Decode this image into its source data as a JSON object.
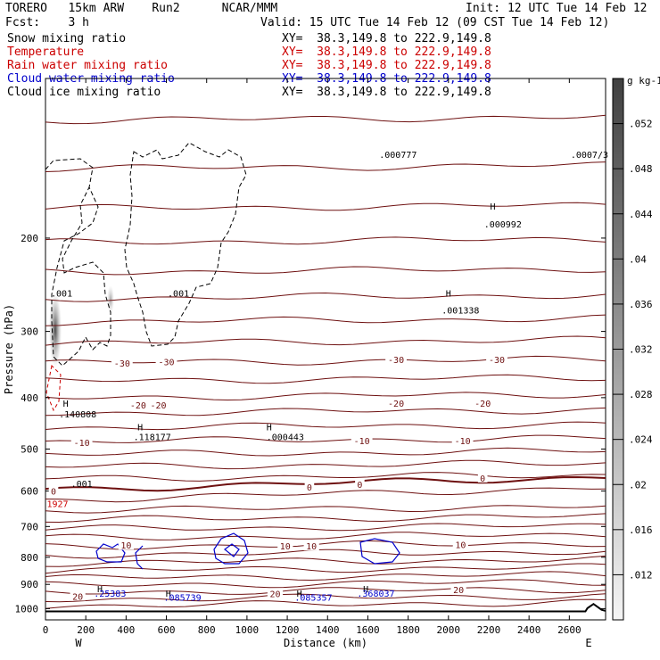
{
  "header": {
    "model": "TORERO   15km ARW    Run2      NCAR/MMM",
    "init": "Init: 12 UTC Tue 14 Feb 12",
    "fcst": "Fcst:    3 h",
    "valid": "Valid: 15 UTC Tue 14 Feb 12 (09 CST Tue 14 Feb 12)",
    "fields": [
      {
        "name": "Snow mixing ratio",
        "xy": "XY=  38.3,149.8 to 222.9,149.8",
        "color": "#000000"
      },
      {
        "name": "Temperature",
        "xy": "XY=  38.3,149.8 to 222.9,149.8",
        "color": "#cc0000"
      },
      {
        "name": "Rain water mixing ratio",
        "xy": "XY=  38.3,149.8 to 222.9,149.8",
        "color": "#cc0000"
      },
      {
        "name": "Cloud water mixing ratio",
        "xy": "XY=  38.3,149.8 to 222.9,149.8",
        "color": "#0000cc"
      },
      {
        "name": "Cloud ice mixing ratio",
        "xy": "XY=  38.3,149.8 to 222.9,149.8",
        "color": "#000000"
      }
    ]
  },
  "chart_data": {
    "type": "cross-section",
    "xlabel": "Distance (km)",
    "ylabel": "Pressure (hPa)",
    "xlim": [
      0,
      2780
    ],
    "ylim_hpa": [
      1050,
      100
    ],
    "x_ticks": [
      0,
      200,
      400,
      600,
      800,
      1000,
      1200,
      1400,
      1600,
      1800,
      2000,
      2200,
      2400,
      2600
    ],
    "y_ticks": [
      200,
      300,
      400,
      500,
      600,
      700,
      800,
      900,
      1000
    ],
    "west_label": "W",
    "east_label": "E",
    "colorbar": {
      "unit": "g kg-1",
      "ticks": [
        ".012",
        ".016",
        ".02",
        ".024",
        ".028",
        ".032",
        ".036",
        ".04",
        ".044",
        ".048",
        ".052"
      ]
    },
    "isotherm_labels": [
      {
        "text": "-30",
        "x": 380,
        "p": 344
      },
      {
        "text": "-30",
        "x": 600,
        "p": 342
      },
      {
        "text": "-30",
        "x": 1740,
        "p": 339
      },
      {
        "text": "-30",
        "x": 2240,
        "p": 339
      },
      {
        "text": "-20",
        "x": 460,
        "p": 413
      },
      {
        "text": "-20",
        "x": 560,
        "p": 413
      },
      {
        "text": "-20",
        "x": 1740,
        "p": 410
      },
      {
        "text": "-20",
        "x": 2170,
        "p": 410
      },
      {
        "text": "-10",
        "x": 180,
        "p": 486
      },
      {
        "text": "-10",
        "x": 1570,
        "p": 482
      },
      {
        "text": "-10",
        "x": 2070,
        "p": 482
      },
      {
        "text": "0",
        "x": 40,
        "p": 600
      },
      {
        "text": "0",
        "x": 1310,
        "p": 589
      },
      {
        "text": "0",
        "x": 1560,
        "p": 583
      },
      {
        "text": "0",
        "x": 2170,
        "p": 567
      },
      {
        "text": "10",
        "x": 400,
        "p": 759
      },
      {
        "text": "10",
        "x": 1190,
        "p": 762
      },
      {
        "text": "10",
        "x": 1320,
        "p": 762
      },
      {
        "text": "10",
        "x": 2060,
        "p": 757
      },
      {
        "text": "20",
        "x": 160,
        "p": 947
      },
      {
        "text": "20",
        "x": 1140,
        "p": 937
      },
      {
        "text": "20",
        "x": 2050,
        "p": 920
      }
    ],
    "maxima": [
      {
        "label": ".001",
        "x": 80,
        "p": 254,
        "color": "#000000"
      },
      {
        "label": ".001",
        "x": 660,
        "p": 254,
        "color": "#000000"
      },
      {
        "label": ".001",
        "x": 180,
        "p": 580,
        "color": "#000000"
      },
      {
        "label": ".140808",
        "x": 160,
        "p": 429,
        "color": "#000000"
      },
      {
        "label": ".118177",
        "x": 530,
        "p": 474,
        "color": "#000000"
      },
      {
        "label": ".000443",
        "x": 1190,
        "p": 474,
        "color": "#000000"
      },
      {
        "label": ".001338",
        "x": 2060,
        "p": 273,
        "color": "#000000"
      },
      {
        "label": ".000992",
        "x": 2270,
        "p": 188,
        "color": "#000000"
      },
      {
        "label": ".000777",
        "x": 1750,
        "p": 139,
        "color": "#000000"
      },
      {
        "label": ".0007/3",
        "x": 2700,
        "p": 139,
        "color": "#000000"
      },
      {
        "label": "1927",
        "x": 60,
        "p": 633,
        "color": "#cc0000"
      },
      {
        "label": ".25383",
        "x": 320,
        "p": 935,
        "color": "#0000cc"
      },
      {
        "label": ".085739",
        "x": 680,
        "p": 951,
        "color": "#0000cc"
      },
      {
        "label": ".085357",
        "x": 1330,
        "p": 951,
        "color": "#0000cc"
      },
      {
        "label": ".368037",
        "x": 1640,
        "p": 935,
        "color": "#0000cc"
      }
    ],
    "h_markers": [
      {
        "x": 100,
        "p": 410
      },
      {
        "x": 470,
        "p": 454
      },
      {
        "x": 1110,
        "p": 454
      },
      {
        "x": 2000,
        "p": 254
      },
      {
        "x": 2220,
        "p": 174
      },
      {
        "x": 270,
        "p": 917
      },
      {
        "x": 610,
        "p": 935
      },
      {
        "x": 1260,
        "p": 935
      },
      {
        "x": 1590,
        "p": 917
      }
    ],
    "colors": {
      "isotherm": "#6e1010",
      "rain": "#cc0000",
      "cloud_water": "#0000cc",
      "snow": "#000000"
    }
  }
}
